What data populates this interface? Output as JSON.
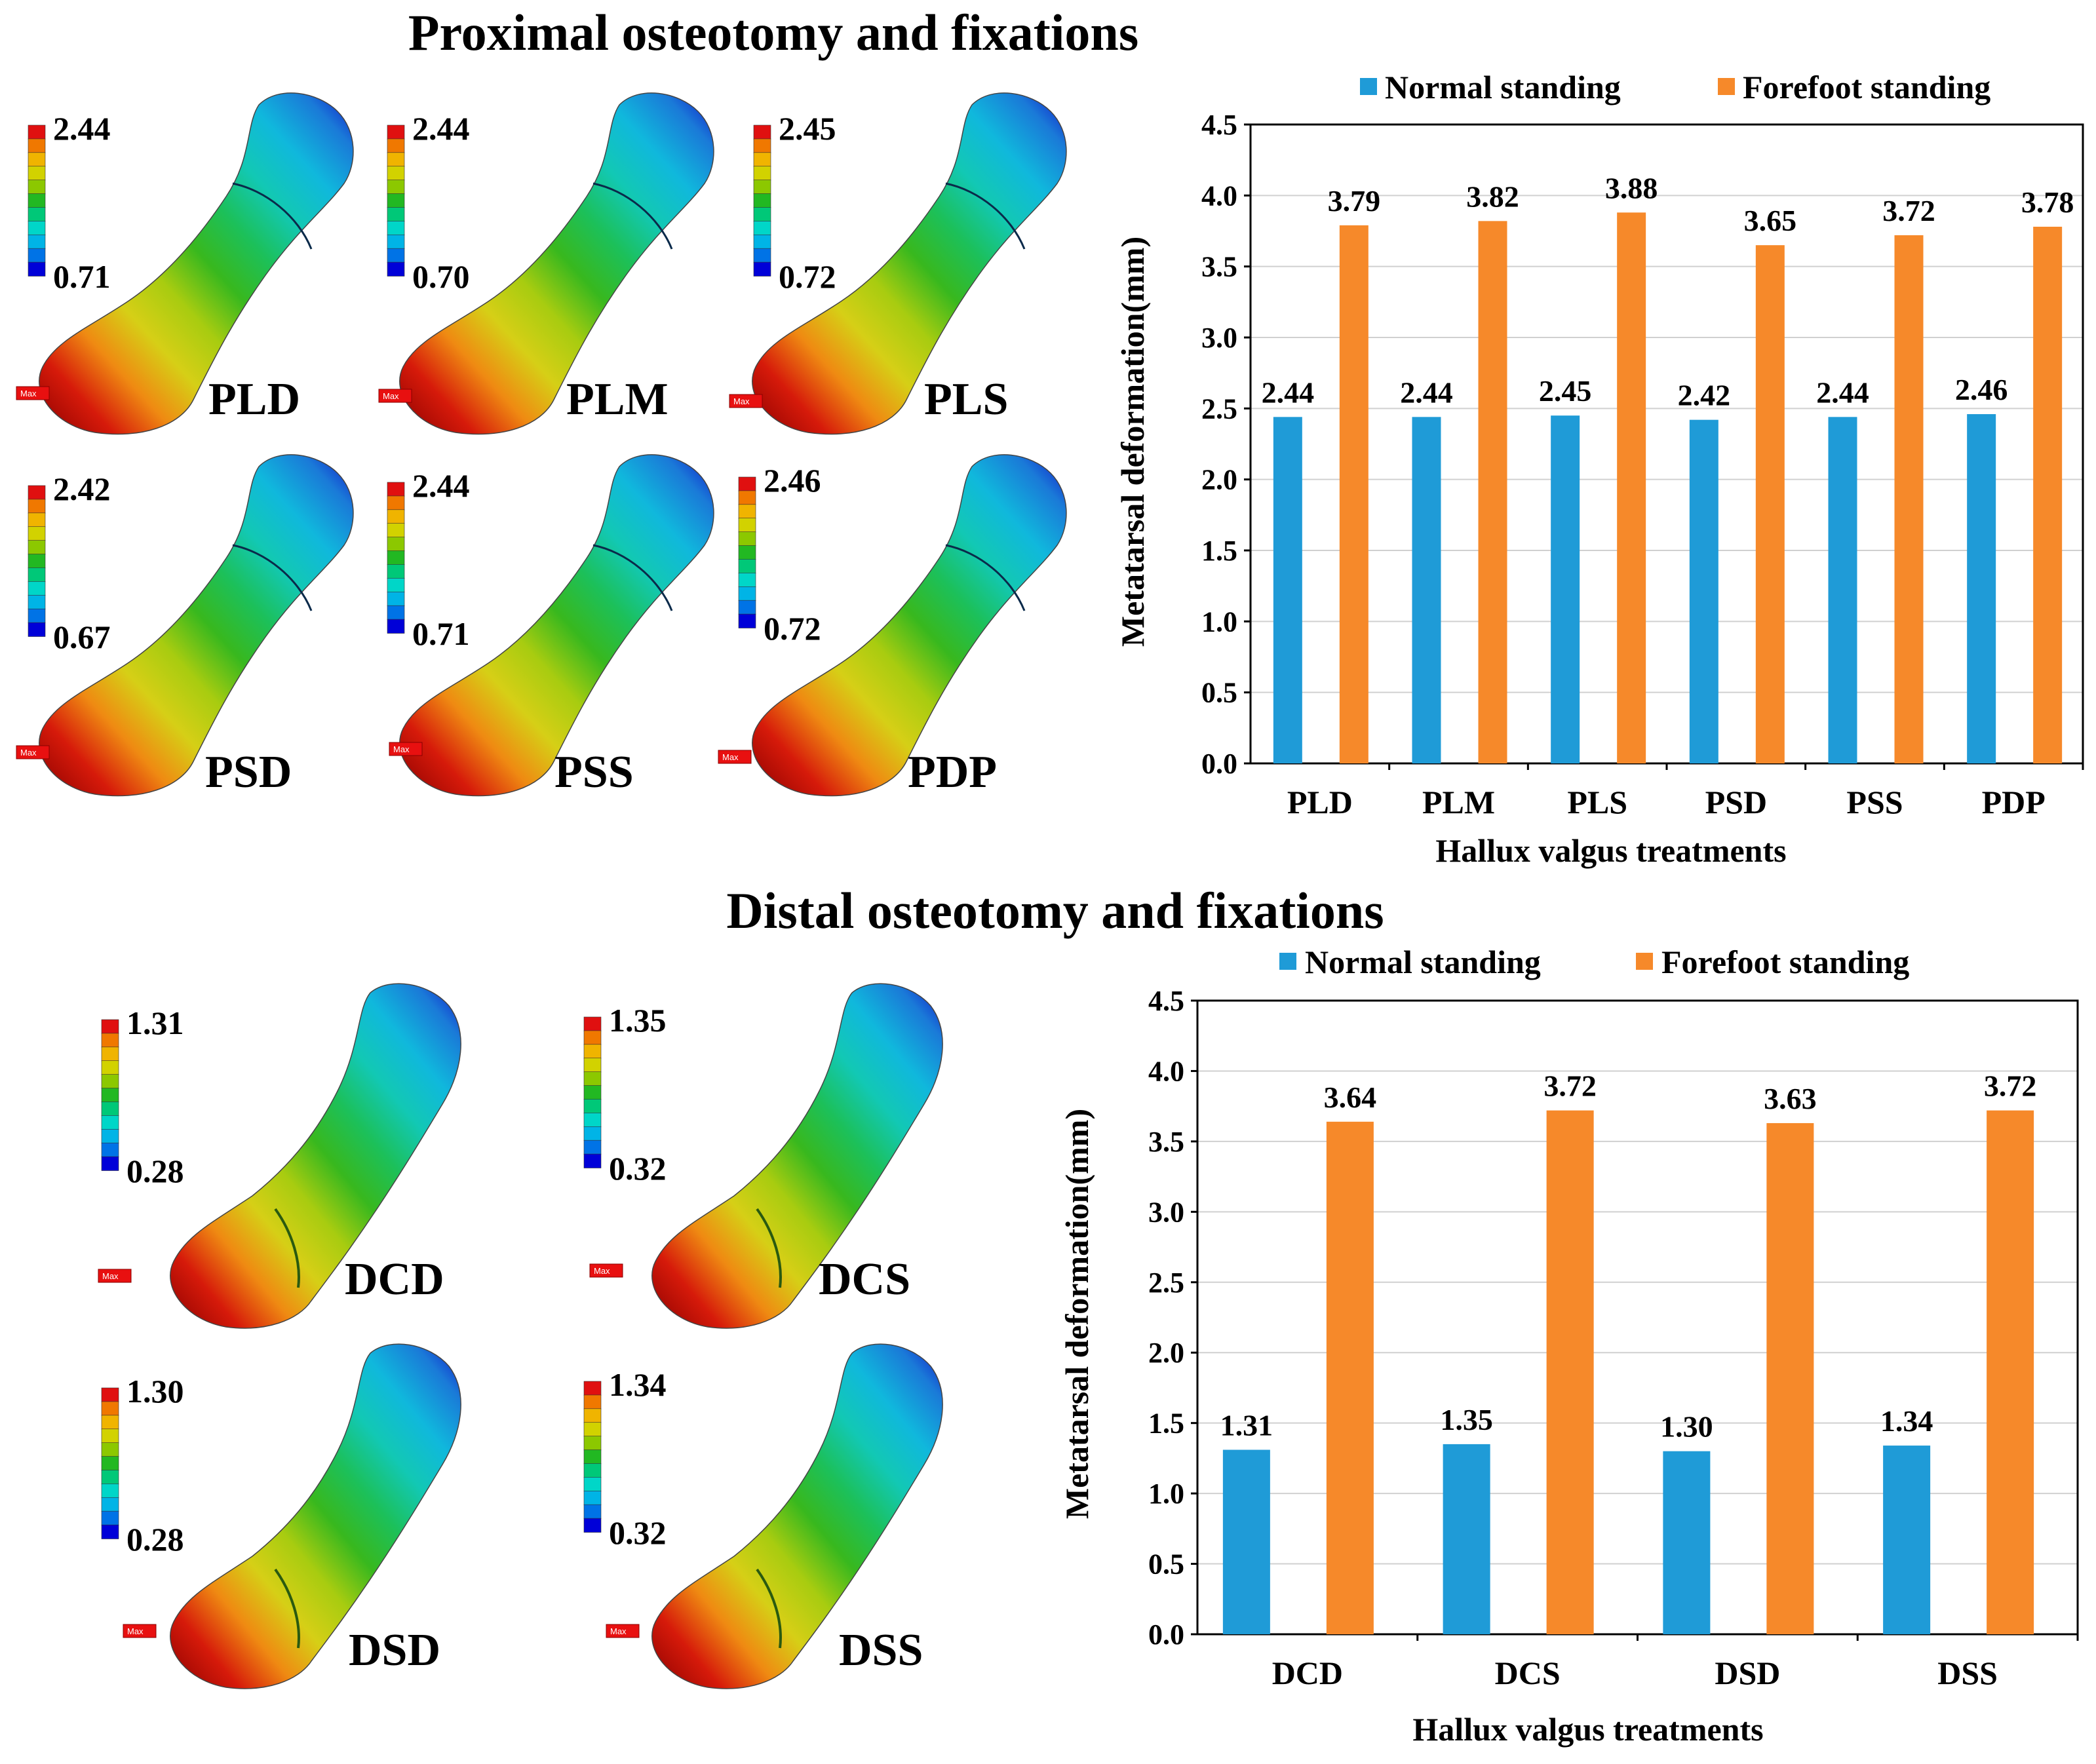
{
  "sections": [
    {
      "title": "Proximal osteotomy and fixations",
      "models": [
        {
          "name": "PLD",
          "max": "2.44",
          "min": "0.71",
          "tag": "Max"
        },
        {
          "name": "PLM",
          "max": "2.44",
          "min": "0.70",
          "tag": "Max"
        },
        {
          "name": "PLS",
          "max": "2.45",
          "min": "0.72",
          "tag": "Max"
        },
        {
          "name": "PSD",
          "max": "2.42",
          "min": "0.67",
          "tag": "Max"
        },
        {
          "name": "PSS",
          "max": "2.44",
          "min": "0.71",
          "tag": "Max"
        },
        {
          "name": "PDP",
          "max": "2.46",
          "min": "0.72",
          "tag": "Max"
        }
      ]
    },
    {
      "title": "Distal osteotomy and fixations",
      "models": [
        {
          "name": "DCD",
          "max": "1.31",
          "min": "0.28",
          "tag": "Max"
        },
        {
          "name": "DCS",
          "max": "1.35",
          "min": "0.32",
          "tag": "Max"
        },
        {
          "name": "DSD",
          "max": "1.30",
          "min": "0.28",
          "tag": "Max"
        },
        {
          "name": "DSS",
          "max": "1.34",
          "min": "0.32",
          "tag": "Max"
        }
      ]
    }
  ],
  "colors": {
    "normal": "#1f9bd7",
    "forefoot": "#f6892a",
    "colorbar": [
      "#0000d8",
      "#0073e6",
      "#00b4e6",
      "#00d6c8",
      "#00c878",
      "#22b822",
      "#8cc800",
      "#d2d200",
      "#f0b400",
      "#f07800",
      "#e01010"
    ]
  },
  "chart_data": [
    {
      "type": "bar",
      "title": "Proximal osteotomy and fixations",
      "categories": [
        "PLD",
        "PLM",
        "PLS",
        "PSD",
        "PSS",
        "PDP"
      ],
      "series": [
        {
          "name": "Normal standing",
          "values": [
            2.44,
            2.44,
            2.45,
            2.42,
            2.44,
            2.46
          ]
        },
        {
          "name": "Forefoot standing",
          "values": [
            3.79,
            3.82,
            3.88,
            3.65,
            3.72,
            3.78
          ]
        }
      ],
      "xlabel": "Hallux valgus treatments",
      "ylabel": "Metatarsal deformation(mm)",
      "ylim": [
        0,
        4.5
      ],
      "yticks": [
        "0.0",
        "0.5",
        "1.0",
        "1.5",
        "2.0",
        "2.5",
        "3.0",
        "3.5",
        "4.0",
        "4.5"
      ],
      "grid": true,
      "legend": "top"
    },
    {
      "type": "bar",
      "title": "Distal osteotomy and fixations",
      "categories": [
        "DCD",
        "DCS",
        "DSD",
        "DSS"
      ],
      "series": [
        {
          "name": "Normal standing",
          "values": [
            1.31,
            1.35,
            1.3,
            1.34
          ]
        },
        {
          "name": "Forefoot standing",
          "values": [
            3.64,
            3.72,
            3.63,
            3.72
          ]
        }
      ],
      "xlabel": "Hallux valgus treatments",
      "ylabel": "Metatarsal deformation(mm)",
      "ylim": [
        0,
        4.5
      ],
      "yticks": [
        "0.0",
        "0.5",
        "1.0",
        "1.5",
        "2.0",
        "2.5",
        "3.0",
        "3.5",
        "4.0",
        "4.5"
      ],
      "grid": true,
      "legend": "top"
    }
  ]
}
